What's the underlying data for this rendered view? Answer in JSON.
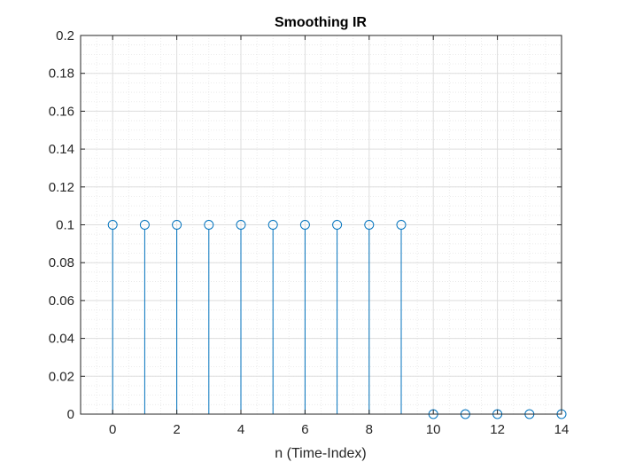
{
  "chart_data": {
    "type": "stem",
    "title": "Smoothing IR",
    "xlabel": "n (Time-Index)",
    "ylabel": "",
    "xlim": [
      -1,
      14
    ],
    "ylim": [
      0,
      0.2
    ],
    "xticks": [
      0,
      2,
      4,
      6,
      8,
      10,
      12,
      14
    ],
    "xtick_labels": [
      "0",
      "2",
      "4",
      "6",
      "8",
      "10",
      "12",
      "14"
    ],
    "yticks": [
      0,
      0.02,
      0.04,
      0.06,
      0.08,
      0.1,
      0.12,
      0.14,
      0.16,
      0.18,
      0.2
    ],
    "ytick_labels": [
      "0",
      "0.02",
      "0.04",
      "0.06",
      "0.08",
      "0.1",
      "0.12",
      "0.14",
      "0.16",
      "0.18",
      "0.2"
    ],
    "grid": true,
    "minor_grid": true,
    "series": [
      {
        "x": [
          0,
          1,
          2,
          3,
          4,
          5,
          6,
          7,
          8,
          9,
          10,
          11,
          12,
          13,
          14
        ],
        "y": [
          0.1,
          0.1,
          0.1,
          0.1,
          0.1,
          0.1,
          0.1,
          0.1,
          0.1,
          0.1,
          0,
          0,
          0,
          0,
          0
        ],
        "color": "#0072BD",
        "marker": "circle-open"
      }
    ]
  }
}
